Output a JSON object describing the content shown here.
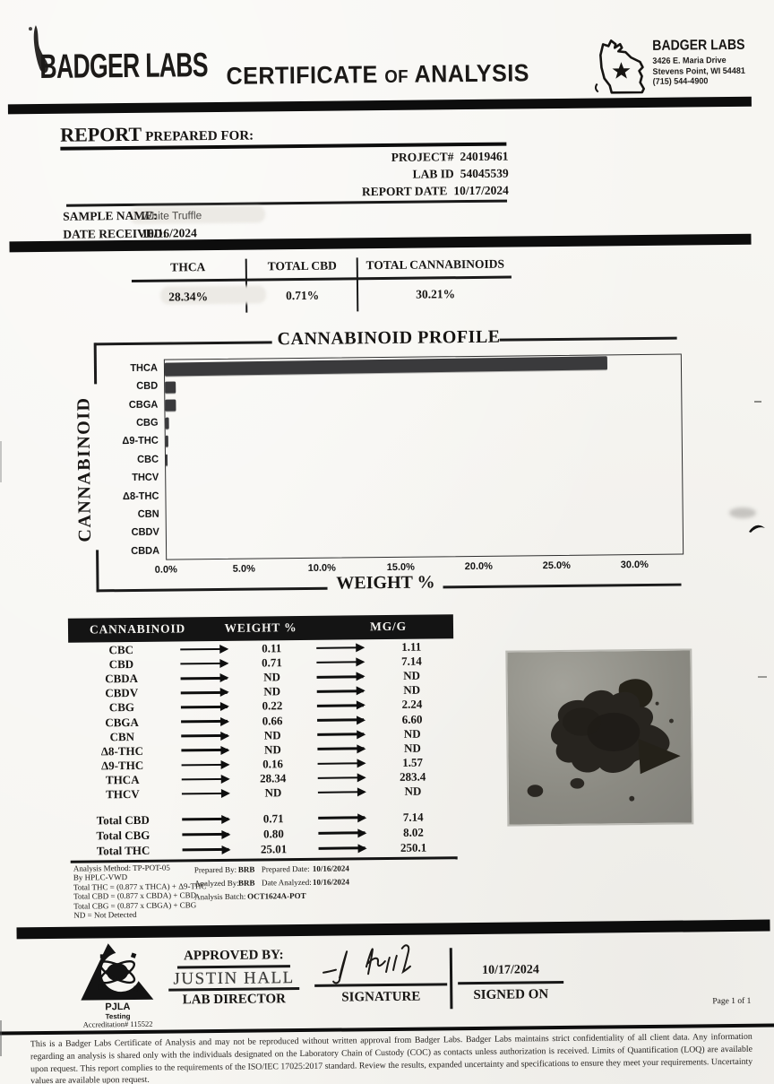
{
  "header": {
    "brand": "BADGER LABS",
    "title": {
      "word1": "CERTIFICATE",
      "word2": "OF",
      "word3": "ANALYSIS"
    },
    "lab": {
      "name": "BADGER LABS",
      "address1": "3426 E. Maria Drive",
      "address2": "Stevens Point, WI 54481",
      "phone": "(715) 544-4900"
    }
  },
  "report": {
    "prepared_for_label_1": "REPORT",
    "prepared_for_label_2": "PREPARED FOR:",
    "project_label": "PROJECT#",
    "project_value": "24019461",
    "lab_id_label": "LAB ID",
    "lab_id_value": "54045539",
    "report_date_label": "REPORT DATE",
    "report_date_value": "10/17/2024",
    "sample_name_label": "SAMPLE NAME:",
    "sample_name_value": "White Truffle",
    "date_received_label": "DATE RECEIVED:",
    "date_received_value": "10/16/2024"
  },
  "summary": {
    "columns": [
      {
        "label": "THCA",
        "value": "28.34%"
      },
      {
        "label": "TOTAL CBD",
        "value": "0.71%"
      },
      {
        "label": "TOTAL CANNABINOIDS",
        "value": "30.21%"
      }
    ]
  },
  "chart_data": {
    "type": "bar",
    "orientation": "horizontal",
    "title": "CANNABINOID PROFILE",
    "xlabel": "WEIGHT %",
    "ylabel": "CANNABINOID",
    "categories": [
      "THCA",
      "CBD",
      "CBGA",
      "CBG",
      "Δ9-THC",
      "CBC",
      "THCV",
      "Δ8-THC",
      "CBN",
      "CBDV",
      "CBDA"
    ],
    "values": [
      28.34,
      0.71,
      0.66,
      0.22,
      0.16,
      0.11,
      0,
      0,
      0,
      0,
      0
    ],
    "xlim": [
      0,
      33
    ],
    "x_ticks": [
      "0.0%",
      "5.0%",
      "10.0%",
      "15.0%",
      "20.0%",
      "25.0%",
      "30.0%"
    ],
    "grid": false,
    "bar_color": "#3a3a3c"
  },
  "table": {
    "headers": [
      "CANNABINOID",
      "WEIGHT %",
      "MG/G"
    ],
    "rows": [
      {
        "name": "CBC",
        "weight": "0.11",
        "mg": "1.11"
      },
      {
        "name": "CBD",
        "weight": "0.71",
        "mg": "7.14"
      },
      {
        "name": "CBDA",
        "weight": "ND",
        "mg": "ND"
      },
      {
        "name": "CBDV",
        "weight": "ND",
        "mg": "ND"
      },
      {
        "name": "CBG",
        "weight": "0.22",
        "mg": "2.24"
      },
      {
        "name": "CBGA",
        "weight": "0.66",
        "mg": "6.60"
      },
      {
        "name": "CBN",
        "weight": "ND",
        "mg": "ND"
      },
      {
        "name": "Δ8-THC",
        "weight": "ND",
        "mg": "ND"
      },
      {
        "name": "Δ9-THC",
        "weight": "0.16",
        "mg": "1.57"
      },
      {
        "name": "THCA",
        "weight": "28.34",
        "mg": "283.4"
      },
      {
        "name": "THCV",
        "weight": "ND",
        "mg": "ND"
      }
    ],
    "totals": [
      {
        "name": "Total CBD",
        "weight": "0.71",
        "mg": "7.14"
      },
      {
        "name": "Total CBG",
        "weight": "0.80",
        "mg": "8.02"
      },
      {
        "name": "Total THC",
        "weight": "25.01",
        "mg": "250.1"
      }
    ]
  },
  "notes": {
    "method_lines": [
      "Analysis Method: TP-POT-05",
      "By HPLC-VWD",
      "Total THC = (0.877 x THCA) + Δ9-THC",
      "Total CBD = (0.877 x CBDA) + CBD",
      "Total CBG = (0.877 x CBGA) + CBG",
      "ND = Not Detected"
    ],
    "prepared_by_label": "Prepared By:",
    "prepared_by_value": "BRB",
    "analyzed_by_label": "Analyzed By:",
    "analyzed_by_value": "BRB",
    "analysis_batch_label": "Analysis Batch:",
    "analysis_batch_value": "OCT1624A-POT",
    "prepared_date_label": "Prepared Date:",
    "prepared_date_value": "10/16/2024",
    "date_analyzed_label": "Date Analyzed:",
    "date_analyzed_value": "10/16/2024"
  },
  "approval": {
    "accreditation_org": "PJLA",
    "accreditation_line2": "Testing",
    "accreditation_line3": "Accreditation# 115522",
    "approved_by_label": "APPROVED BY:",
    "approver_name": "JUSTIN HALL",
    "approver_title": "LAB DIRECTOR",
    "signature_label": "SIGNATURE",
    "signed_on_label": "SIGNED ON",
    "signed_on_value": "10/17/2024"
  },
  "page_number": "Page 1 of 1",
  "disclaimer": "This is a Badger Labs Certificate of Analysis and may not be reproduced without written approval from Badger Labs. Badger Labs maintains strict confidentiality of all client data. Any information regarding an analysis is shared only with the individuals designated on the Laboratory Chain of Custody (COC) as contacts unless authorization is received. Limits of Quantification (LOQ) are available upon request. This report complies to the requirements of the ISO/IEC 17025:2017 standard. Review the results, expanded uncertainty and specifications to ensure they meet your requirements. Uncertainty values are available upon request.",
  "colors": {
    "bar": "#3a3a3c",
    "header_bar": "#141414",
    "paper": "#f7f6f2"
  }
}
